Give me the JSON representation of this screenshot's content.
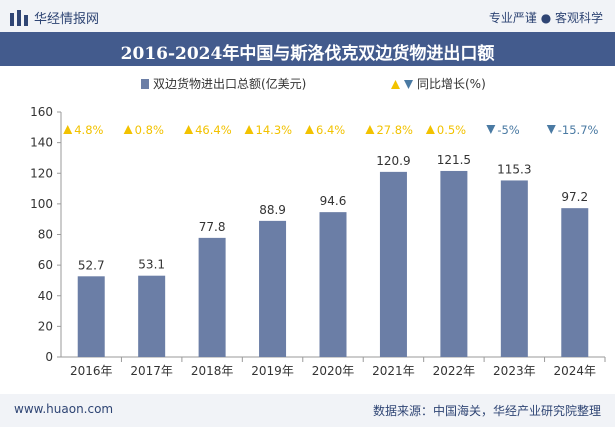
{
  "header": {
    "brand": "华经情报网",
    "tagline": "专业严谨 ● 客观科学"
  },
  "footer": {
    "site": "www.huaon.com",
    "source": "数据来源：中国海关，华经产业研究院整理"
  },
  "colors": {
    "bar": "#6b7ea6",
    "up": "#f2c200",
    "down": "#4a7aa3",
    "title_bg": "#435b8d",
    "text": "#2f4574"
  },
  "chart_data": {
    "type": "bar",
    "title": "2016-2024年中国与斯洛伐克双边货物进出口额",
    "categories": [
      "2016年",
      "2017年",
      "2018年",
      "2019年",
      "2020年",
      "2021年",
      "2022年",
      "2023年",
      "2024年"
    ],
    "series": [
      {
        "name": "双边货物进出口总额(亿美元)",
        "values": [
          52.7,
          53.1,
          77.8,
          88.9,
          94.6,
          120.9,
          121.5,
          115.3,
          97.2
        ]
      }
    ],
    "growth": {
      "name": "同比增长(%)",
      "values": [
        4.8,
        0.8,
        46.4,
        14.3,
        6.4,
        27.8,
        0.5,
        -5,
        -15.7
      ],
      "labels": [
        "4.8%",
        "0.8%",
        "46.4%",
        "14.3%",
        "6.4%",
        "27.8%",
        "0.5%",
        "-5%",
        "-15.7%"
      ]
    },
    "value_labels": [
      "52.7",
      "53.1",
      "77.8",
      "88.9",
      "94.6",
      "120.9",
      "121.5",
      "115.3",
      "97.2"
    ],
    "ylim": [
      0,
      160
    ],
    "yticks": [
      "0",
      "20",
      "40",
      "60",
      "80",
      "100",
      "120",
      "140",
      "160"
    ],
    "legend_position": "top-center",
    "grid": false
  }
}
